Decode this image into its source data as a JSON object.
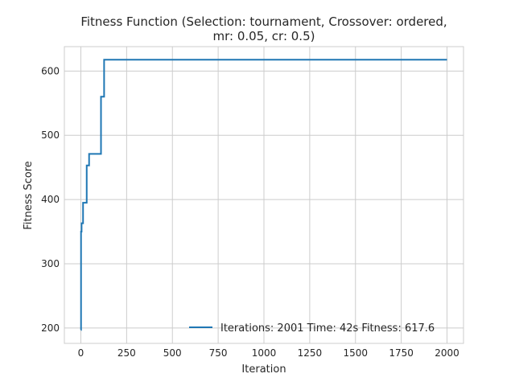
{
  "chart_data": {
    "type": "line",
    "title_line1": "Fitness Function (Selection: tournament, Crossover: ordered,",
    "title_line2": "mr: 0.05, cr: 0.5)",
    "xlabel": "Iteration",
    "ylabel": "Fitness Score",
    "xlim": [
      -90,
      2090
    ],
    "ylim": [
      176,
      638
    ],
    "xticks": [
      0,
      250,
      500,
      750,
      1000,
      1250,
      1500,
      1750,
      2000
    ],
    "yticks": [
      200,
      300,
      400,
      500,
      600
    ],
    "grid": true,
    "legend_position": "lower right",
    "series": [
      {
        "name": "Iterations: 2001 Time: 42s Fitness: 617.6",
        "color": "#1f77b4",
        "step": true,
        "x": [
          0,
          1,
          4,
          12,
          32,
          45,
          110,
          127,
          2000
        ],
        "y": [
          197,
          350,
          363,
          395,
          453,
          471,
          560,
          617.6,
          617.6
        ]
      }
    ]
  }
}
